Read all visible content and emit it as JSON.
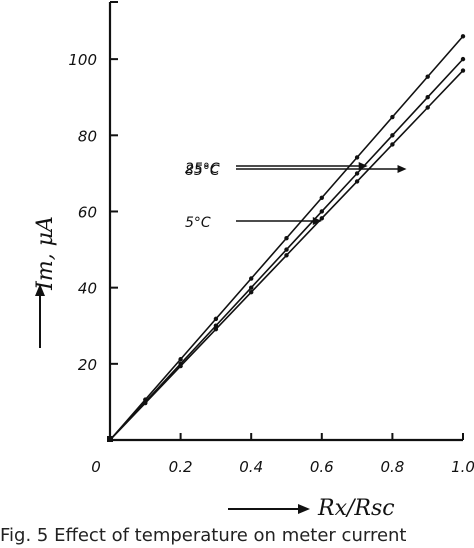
{
  "chart_data": {
    "type": "line",
    "xlabel": "Rx/Rsc",
    "ylabel": "Im, μA",
    "xlim": [
      0,
      1.0
    ],
    "ylim": [
      0,
      115
    ],
    "x_ticks": [
      "0",
      "0.2",
      "0.4",
      "0.6",
      "0.8",
      "1.0"
    ],
    "y_ticks": [
      "20",
      "40",
      "60",
      "80",
      "100"
    ],
    "grid": false,
    "series": [
      {
        "name": "85°C",
        "x": [
          0,
          0.1,
          0.2,
          0.3,
          0.4,
          0.5,
          0.6,
          0.7,
          0.8,
          0.9,
          1.0
        ],
        "y": [
          0,
          10.6,
          21.2,
          31.8,
          42.4,
          53.0,
          63.6,
          74.2,
          84.8,
          95.4,
          106
        ]
      },
      {
        "name": "25°C",
        "x": [
          0,
          0.1,
          0.2,
          0.3,
          0.4,
          0.5,
          0.6,
          0.7,
          0.8,
          0.9,
          1.0
        ],
        "y": [
          0,
          10.0,
          20.0,
          30.0,
          40.0,
          50.0,
          60.0,
          70.0,
          80.0,
          90.0,
          100
        ]
      },
      {
        "name": "5°C",
        "x": [
          0,
          0.1,
          0.2,
          0.3,
          0.4,
          0.5,
          0.6,
          0.7,
          0.8,
          0.9,
          1.0
        ],
        "y": [
          0,
          9.7,
          19.4,
          29.1,
          38.8,
          48.5,
          58.2,
          67.9,
          77.6,
          87.3,
          97
        ]
      }
    ],
    "annotations": [
      {
        "label": "85°C",
        "series": "85°C",
        "at_x": 0.84
      },
      {
        "label": "25°C",
        "series": "25°C",
        "at_x": 0.73
      },
      {
        "label": "5°C",
        "series": "5°C",
        "at_x": 0.6
      }
    ]
  },
  "caption": "Fig. 5  Effect of temperature on meter current"
}
